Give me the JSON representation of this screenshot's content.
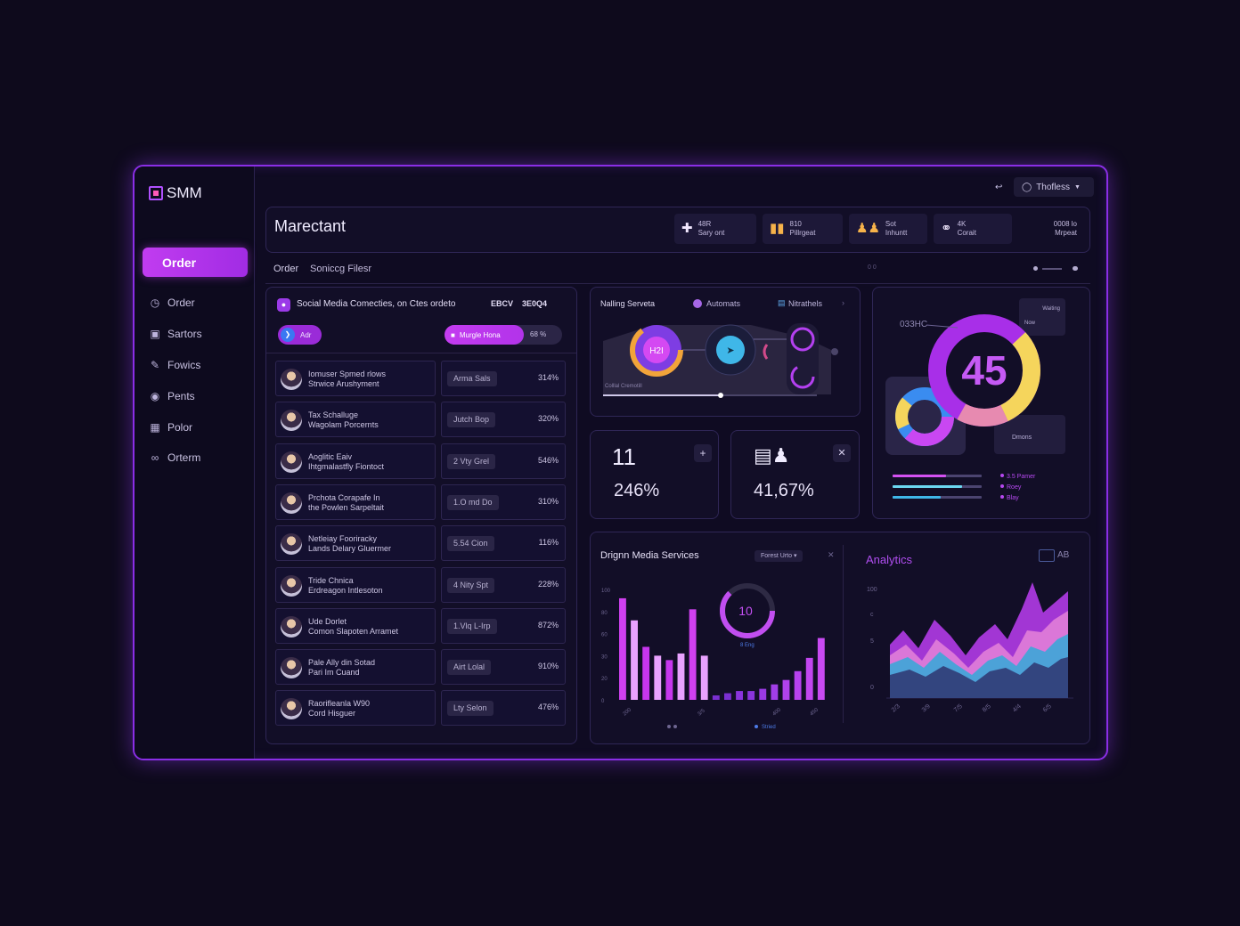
{
  "app": {
    "logo": "SMM"
  },
  "sidebar": {
    "active": "Order",
    "items": [
      {
        "label": "Order",
        "icon": "clock-icon"
      },
      {
        "label": "Sartors",
        "icon": "file-icon"
      },
      {
        "label": "Fowics",
        "icon": "edit-icon"
      },
      {
        "label": "Pents",
        "icon": "globe-icon"
      },
      {
        "label": "Polor",
        "icon": "book-icon"
      },
      {
        "label": "Orterm",
        "icon": "link-icon"
      }
    ]
  },
  "topbar": {
    "account": "Thofless"
  },
  "header": {
    "title": "Marectant",
    "kpis": [
      {
        "value": "48R",
        "label": "Sary ont",
        "icon": "plus-cross-icon"
      },
      {
        "value": "810",
        "label": "Pillrgeat",
        "icon": "bars-icon"
      },
      {
        "value": "Sot",
        "label": "Inhuntt",
        "icon": "people-icon"
      },
      {
        "value": "4K",
        "label": "Corait",
        "icon": "user-group-icon"
      },
      {
        "value": "0008 lo",
        "label": "Mrpeat",
        "icon": ""
      }
    ]
  },
  "subheader": {
    "tab1": "Order",
    "tab2": "Soniccg Filesr",
    "filler": "0 0"
  },
  "orders": {
    "title": "Social Media Comecties, on Ctes ordeto",
    "tag1": "EBCV",
    "tag2": "3E0Q4",
    "pill_left": "Adr",
    "pill_mid": "Murgle Hona",
    "pill_pct": "68 %",
    "rows": [
      {
        "name1": "Iomuser Spmed rlows",
        "name2": "Strwice Arushyment",
        "tag": "Arma Sals",
        "pct": "314%"
      },
      {
        "name1": "Tax Schalluge",
        "name2": "Wagolam Porcernts",
        "tag": "Jutch Bop",
        "pct": "320%"
      },
      {
        "name1": "Aoglitic Eaiv",
        "name2": "Ihtgmalastfly Fiontoct",
        "tag": "2 Vty Grel",
        "pct": "546%"
      },
      {
        "name1": "Prchota Corapafe In",
        "name2": "the Powlen Sarpeltait",
        "tag": "1.O md Do",
        "pct": "310%"
      },
      {
        "name1": "Netleiay Fooriracky",
        "name2": "Lands Delary Gluermer",
        "tag": "5.54 Cion",
        "pct": "116%"
      },
      {
        "name1": "Tride Chnica",
        "name2": "Erdreagon Intlesoton",
        "tag": "4 Nity Spt",
        "pct": "228%"
      },
      {
        "name1": "Ude Dorlet",
        "name2": "Comon Slapoten Arramet",
        "tag": "1.Vlq L-Irp",
        "pct": "872%"
      },
      {
        "name1": "Pale Ally din Sotad",
        "name2": "Pari Im Cuand",
        "tag": "Airt Lolal",
        "pct": "910%"
      },
      {
        "name1": "Raorifleanla W90",
        "name2": "Cord Hisguer",
        "tag": "Lty Selon",
        "pct": "476%"
      }
    ]
  },
  "services": {
    "tab1": "Nalling Serveta",
    "tab2": "Automats",
    "tab3": "Nitrathels",
    "node_label": "H2I",
    "caption": "Colllal Cremotill",
    "slider_value": 0.55
  },
  "stat1": {
    "icon": "counter-icon",
    "big": "11",
    "value": "246%"
  },
  "stat2": {
    "icon": "chart-person-icon",
    "value": "41,67%"
  },
  "donut": {
    "label": "033HC",
    "value": "45",
    "card1_title": "Waiting",
    "card1_sub": "Now",
    "card2": "Dmons",
    "legend": [
      "3.5 Pamer",
      "Roey",
      "Blay"
    ]
  },
  "media": {
    "title": "Drignn Media Services",
    "filter": "Forest Urto",
    "ring_value": "10",
    "ring_sub": "8 Eng",
    "y_ticks": [
      "100",
      "80",
      "60",
      "30",
      "20",
      "0"
    ],
    "x_ticks": [
      "200",
      "",
      "3/5",
      "",
      "400",
      "450"
    ],
    "legend1": "",
    "legend2": "Stried",
    "bars": [
      92,
      72,
      48,
      40,
      36,
      42,
      82,
      40,
      4,
      6,
      8,
      8,
      10,
      14,
      18,
      26,
      38,
      56
    ],
    "bar_colors": [
      "#d040f0",
      "#e9a2ff",
      "#c736ee",
      "#e9a2ff",
      "#c736ee",
      "#e9a2ff",
      "#d040f0",
      "#e9a2ff",
      "#7a2fd0",
      "#7a2fd0",
      "#8a34dc",
      "#8a34dc",
      "#9a3ae4",
      "#a23ee8",
      "#b042ec",
      "#b842ee",
      "#c246f0",
      "#c84af2"
    ]
  },
  "analytics": {
    "title": "Analytics",
    "badge": "AB",
    "y_ticks": [
      "100",
      "c",
      "5",
      "0"
    ],
    "x_ticks": [
      "2/3",
      "3/9",
      "7/5",
      "8/5",
      "4/4",
      "6/5"
    ]
  }
}
